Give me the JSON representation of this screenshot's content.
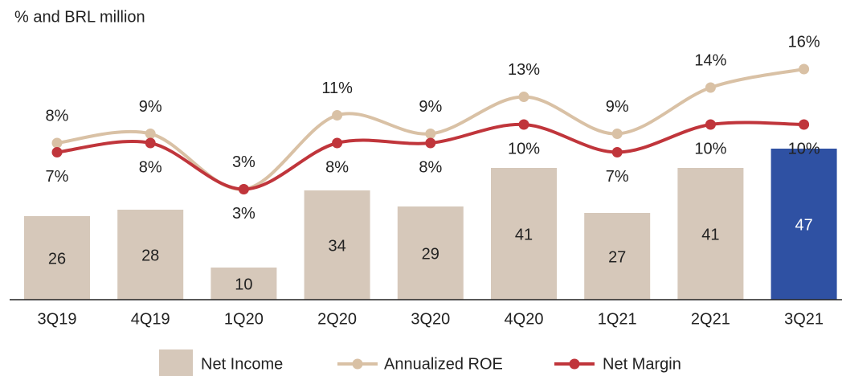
{
  "chart_data": {
    "type": "bar",
    "subtitle": "% and BRL million",
    "categories": [
      "3Q19",
      "4Q19",
      "1Q20",
      "2Q20",
      "3Q20",
      "4Q20",
      "1Q21",
      "2Q21",
      "3Q21"
    ],
    "series": [
      {
        "name": "Net Income",
        "type": "bar",
        "color": "#d6c8ba",
        "colors": [
          "#d6c8ba",
          "#d6c8ba",
          "#d6c8ba",
          "#d6c8ba",
          "#d6c8ba",
          "#d6c8ba",
          "#d6c8ba",
          "#d6c8ba",
          "#2f51a3"
        ],
        "values": [
          26,
          28,
          10,
          34,
          29,
          41,
          27,
          41,
          47
        ]
      },
      {
        "name": "Annualized ROE",
        "type": "line",
        "color": "#d9c1a5",
        "values": [
          8,
          9,
          3,
          11,
          9,
          13,
          9,
          14,
          16
        ],
        "value_labels": [
          "8%",
          "9%",
          "3%",
          "11%",
          "9%",
          "13%",
          "9%",
          "14%",
          "16%"
        ]
      },
      {
        "name": "Net Margin",
        "type": "line",
        "color": "#c0353b",
        "values": [
          7,
          8,
          3,
          8,
          8,
          10,
          7,
          10,
          10
        ],
        "value_labels": [
          "7%",
          "8%",
          "3%",
          "8%",
          "8%",
          "10%",
          "7%",
          "10%",
          "10%"
        ]
      }
    ]
  }
}
